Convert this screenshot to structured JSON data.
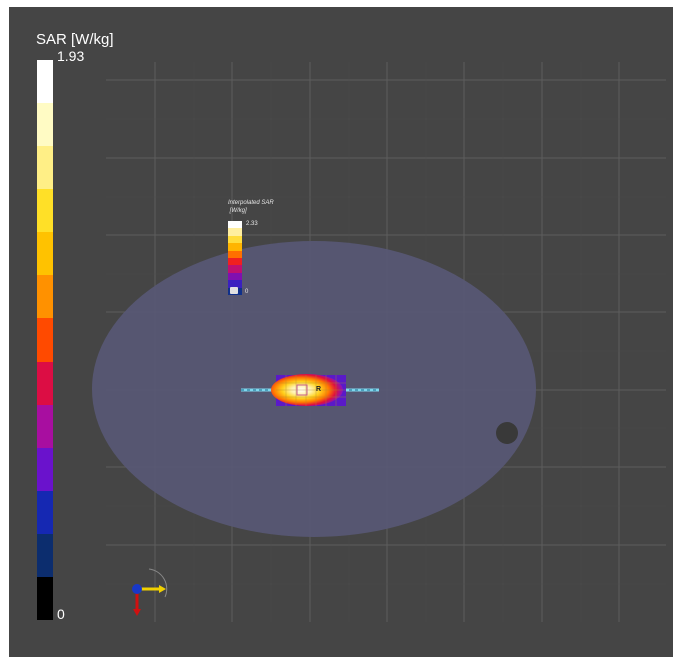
{
  "legend": {
    "title": "SAR [W/kg]",
    "max_label": "1.93",
    "min_label": "0",
    "colors": [
      "#ffffff",
      "#fffbc4",
      "#ffef86",
      "#ffe027",
      "#ffc200",
      "#ff9100",
      "#ff4a00",
      "#dc0d44",
      "#a80ea0",
      "#6a12cc",
      "#1528b2",
      "#0c2d6e",
      "#000000"
    ]
  },
  "inset_legend": {
    "title": "Interpolated SAR\n [W/kg]",
    "max_label": "2.33",
    "min_label": "0",
    "colors": [
      "#ffffff",
      "#ffefa0",
      "#ffdc3c",
      "#ffb400",
      "#ff7000",
      "#f02020",
      "#c01070",
      "#8010b0",
      "#3a20c0",
      "#10308a"
    ],
    "icon": "scale-icon"
  },
  "scene": {
    "background": "#454545",
    "grid_color": "#5a5a5a",
    "phantom_color": "#575774",
    "phantom_hole_color": "#393939",
    "antenna_color": "#7fd7ee",
    "hotspot_label": "R"
  },
  "axes_gizmo": {
    "labels": [
      "y",
      "x"
    ],
    "icon": "orientation-axes-icon"
  }
}
